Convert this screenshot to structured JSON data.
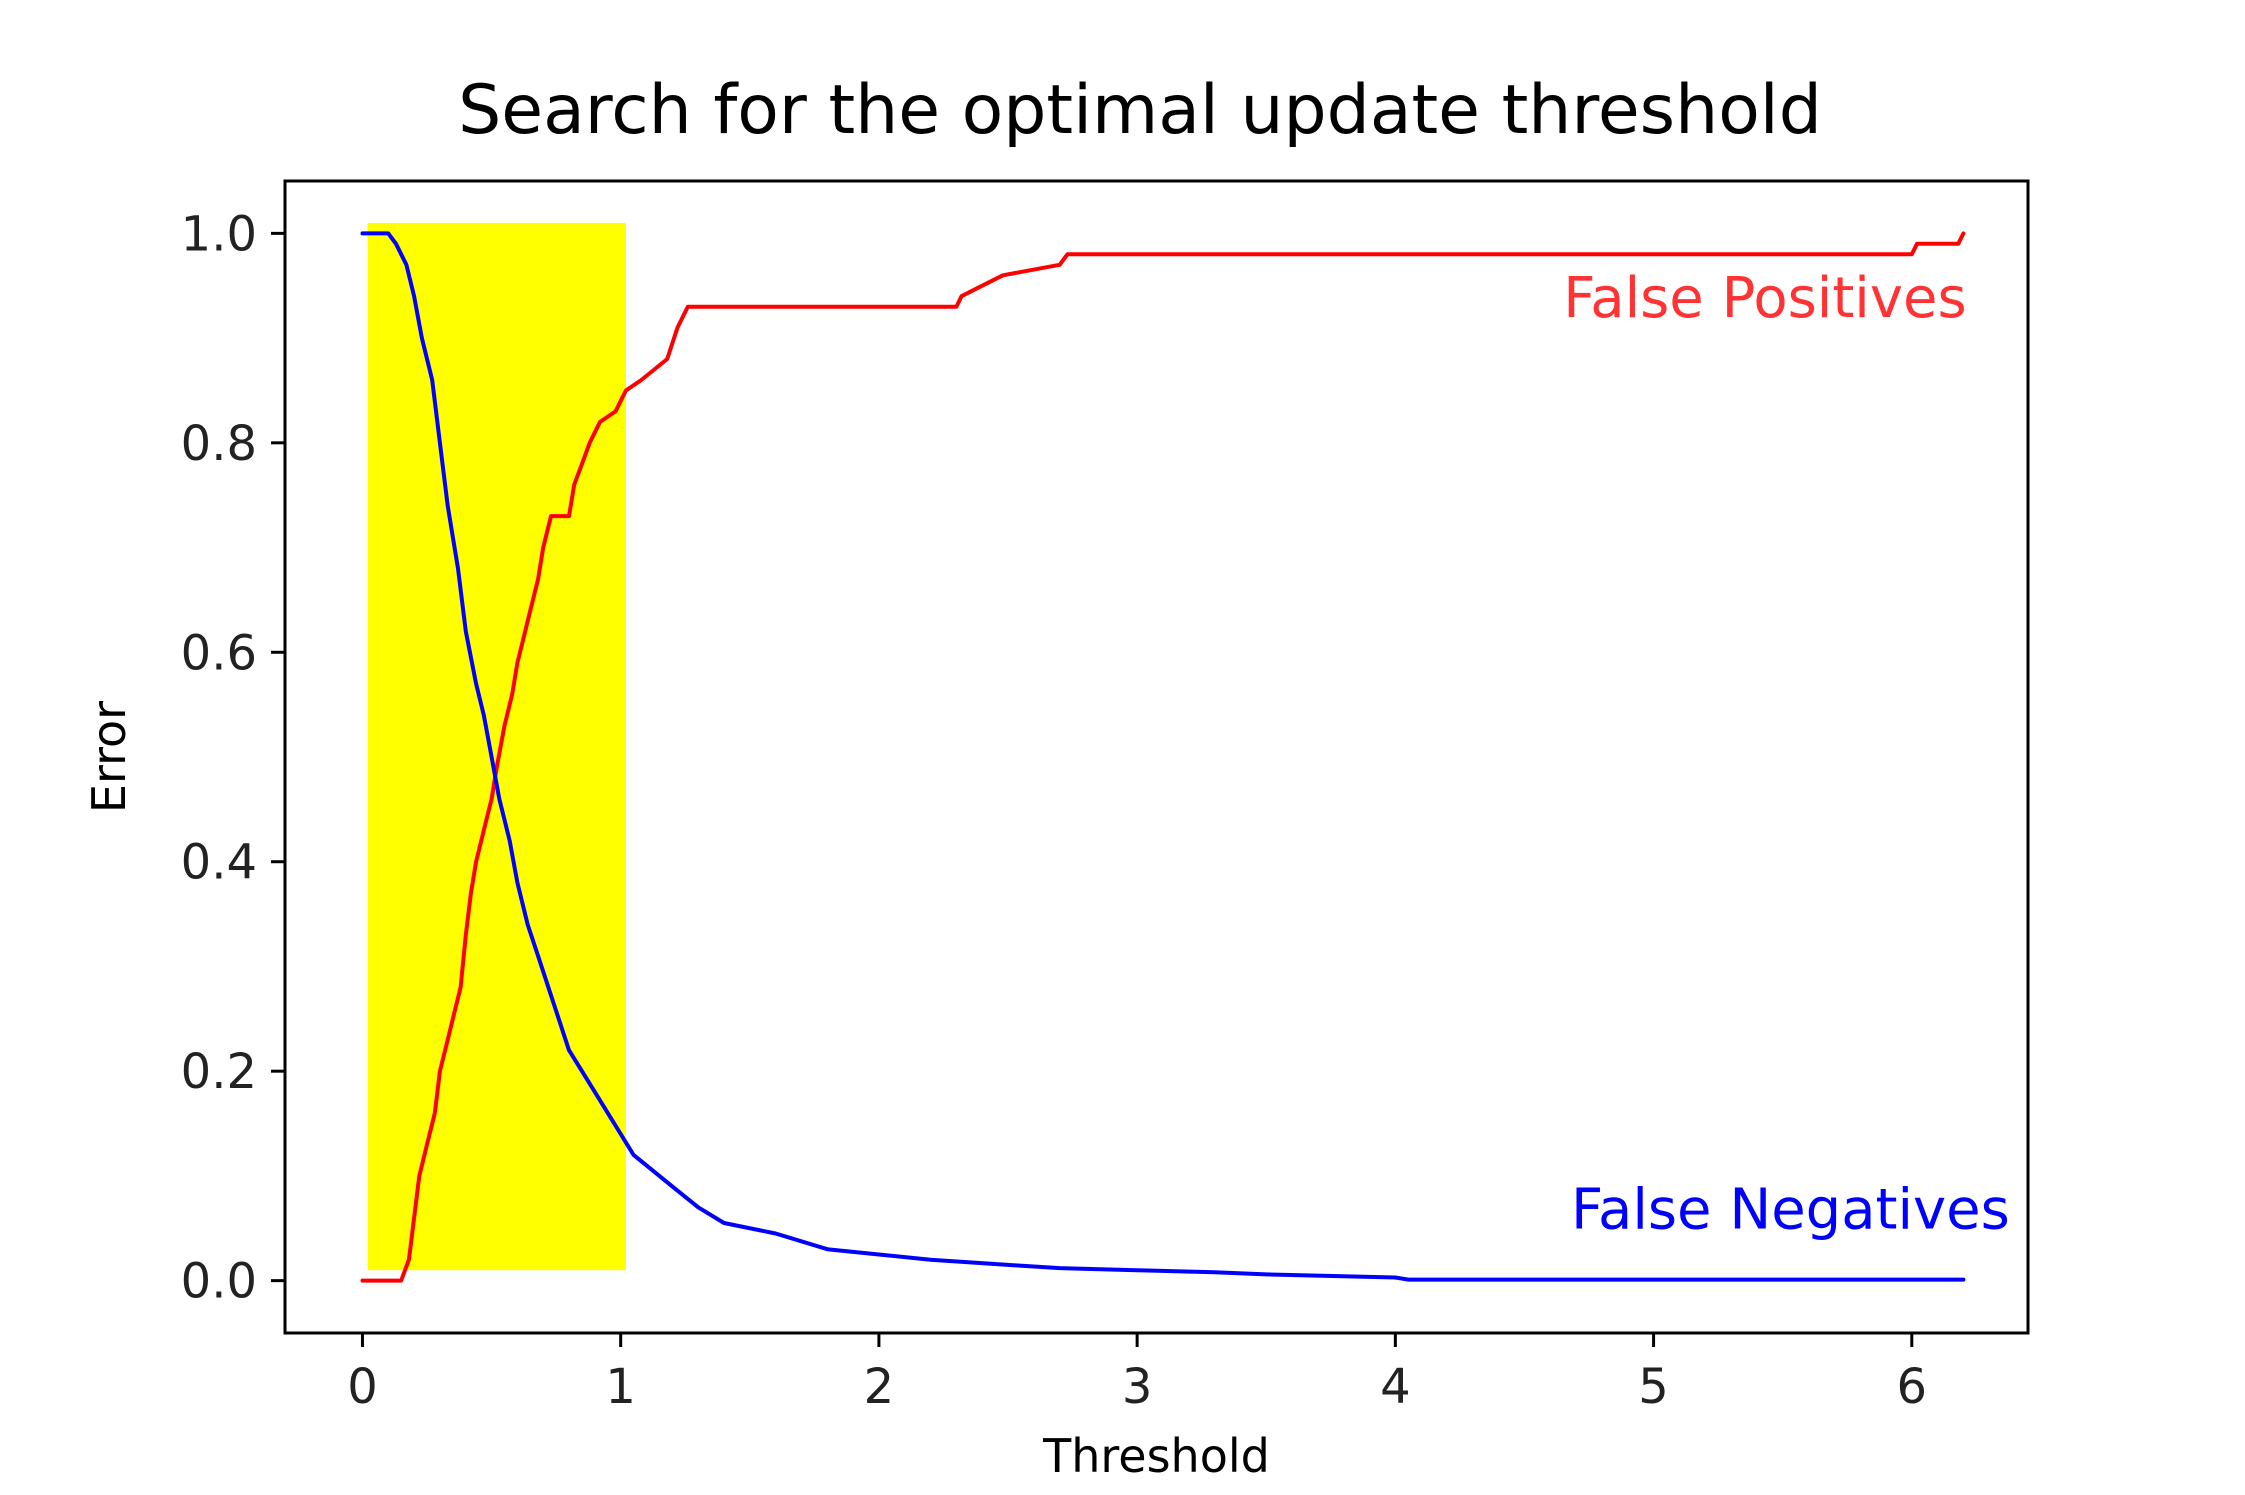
{
  "chart_data": {
    "type": "line",
    "title": "Search for the optimal update threshold",
    "xlabel": "Threshold",
    "ylabel": "Error",
    "xlim": [
      -0.3,
      6.45
    ],
    "ylim": [
      -0.05,
      1.05
    ],
    "xticks": [
      0,
      1,
      2,
      3,
      4,
      5,
      6
    ],
    "xtick_labels": [
      "0",
      "1",
      "2",
      "3",
      "4",
      "5",
      "6"
    ],
    "yticks": [
      0.0,
      0.2,
      0.4,
      0.6,
      0.8,
      1.0
    ],
    "ytick_labels": [
      "0.0",
      "0.2",
      "0.4",
      "0.6",
      "0.8",
      "1.0"
    ],
    "grid": false,
    "highlight_region": {
      "x": [
        0.02,
        1.02
      ],
      "y": [
        0.01,
        1.01
      ],
      "color": "#ffff00"
    },
    "series": [
      {
        "color": "#ff0000",
        "points": [
          [
            0.0,
            0.0
          ],
          [
            0.15,
            0.0
          ],
          [
            0.18,
            0.02
          ],
          [
            0.2,
            0.06
          ],
          [
            0.22,
            0.1
          ],
          [
            0.25,
            0.13
          ],
          [
            0.28,
            0.16
          ],
          [
            0.3,
            0.2
          ],
          [
            0.33,
            0.23
          ],
          [
            0.36,
            0.26
          ],
          [
            0.38,
            0.28
          ],
          [
            0.4,
            0.33
          ],
          [
            0.42,
            0.37
          ],
          [
            0.44,
            0.4
          ],
          [
            0.47,
            0.43
          ],
          [
            0.5,
            0.46
          ],
          [
            0.52,
            0.49
          ],
          [
            0.55,
            0.53
          ],
          [
            0.58,
            0.56
          ],
          [
            0.6,
            0.59
          ],
          [
            0.62,
            0.61
          ],
          [
            0.65,
            0.64
          ],
          [
            0.68,
            0.67
          ],
          [
            0.7,
            0.7
          ],
          [
            0.73,
            0.73
          ],
          [
            0.8,
            0.73
          ],
          [
            0.82,
            0.76
          ],
          [
            0.85,
            0.78
          ],
          [
            0.88,
            0.8
          ],
          [
            0.92,
            0.82
          ],
          [
            0.98,
            0.83
          ],
          [
            1.02,
            0.85
          ],
          [
            1.08,
            0.86
          ],
          [
            1.13,
            0.87
          ],
          [
            1.18,
            0.88
          ],
          [
            1.22,
            0.91
          ],
          [
            1.26,
            0.93
          ],
          [
            2.3,
            0.93
          ],
          [
            2.32,
            0.94
          ],
          [
            2.4,
            0.95
          ],
          [
            2.48,
            0.96
          ],
          [
            2.7,
            0.97
          ],
          [
            2.73,
            0.98
          ],
          [
            6.0,
            0.98
          ],
          [
            6.02,
            0.99
          ],
          [
            6.18,
            0.99
          ],
          [
            6.2,
            1.0
          ]
        ]
      },
      {
        "color": "#0000ff",
        "points": [
          [
            0.0,
            1.0
          ],
          [
            0.1,
            1.0
          ],
          [
            0.13,
            0.99
          ],
          [
            0.17,
            0.97
          ],
          [
            0.2,
            0.94
          ],
          [
            0.23,
            0.9
          ],
          [
            0.27,
            0.86
          ],
          [
            0.3,
            0.8
          ],
          [
            0.33,
            0.74
          ],
          [
            0.37,
            0.68
          ],
          [
            0.4,
            0.62
          ],
          [
            0.44,
            0.57
          ],
          [
            0.47,
            0.54
          ],
          [
            0.5,
            0.5
          ],
          [
            0.53,
            0.46
          ],
          [
            0.57,
            0.42
          ],
          [
            0.6,
            0.38
          ],
          [
            0.64,
            0.34
          ],
          [
            0.68,
            0.31
          ],
          [
            0.72,
            0.28
          ],
          [
            0.76,
            0.25
          ],
          [
            0.8,
            0.22
          ],
          [
            0.85,
            0.2
          ],
          [
            0.9,
            0.18
          ],
          [
            0.95,
            0.16
          ],
          [
            1.0,
            0.14
          ],
          [
            1.05,
            0.12
          ],
          [
            1.1,
            0.11
          ],
          [
            1.2,
            0.09
          ],
          [
            1.3,
            0.07
          ],
          [
            1.4,
            0.055
          ],
          [
            1.6,
            0.045
          ],
          [
            1.8,
            0.03
          ],
          [
            2.0,
            0.025
          ],
          [
            2.2,
            0.02
          ],
          [
            2.5,
            0.015
          ],
          [
            2.7,
            0.012
          ],
          [
            3.0,
            0.01
          ],
          [
            3.3,
            0.008
          ],
          [
            3.5,
            0.006
          ],
          [
            4.0,
            0.003
          ],
          [
            4.05,
            0.001
          ],
          [
            6.2,
            0.001
          ]
        ]
      }
    ],
    "annotations": [
      {
        "text": "False Positives",
        "color": "#ff3333",
        "x": 4.65,
        "y": 0.92
      },
      {
        "text": "False Negatives",
        "color": "#0000ff",
        "x": 4.68,
        "y": 0.05
      }
    ]
  }
}
